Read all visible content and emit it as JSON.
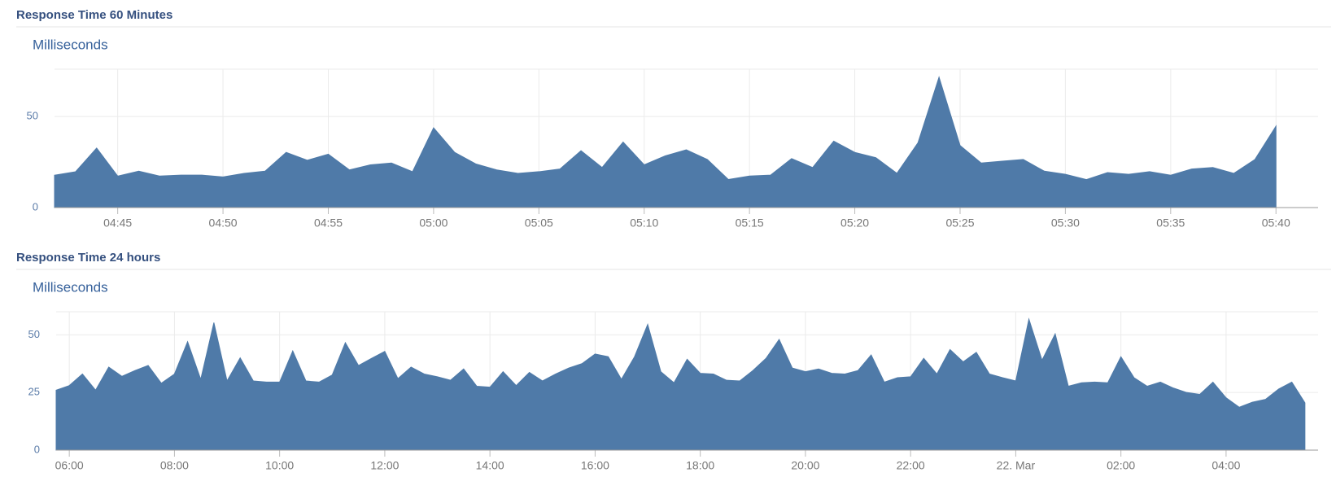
{
  "chart_data": [
    {
      "type": "area",
      "title": "Response Time 60 Minutes",
      "y_label": "Milliseconds",
      "color": "#4f7aa8",
      "categories": [
        null,
        null,
        null,
        "04:45",
        null,
        null,
        null,
        null,
        "04:50",
        null,
        null,
        null,
        null,
        "04:55",
        null,
        null,
        null,
        null,
        "05:00",
        null,
        null,
        null,
        null,
        "05:05",
        null,
        null,
        null,
        null,
        "05:10",
        null,
        null,
        null,
        null,
        "05:15",
        null,
        null,
        null,
        null,
        "05:20",
        null,
        null,
        null,
        null,
        "05:25",
        null,
        null,
        null,
        null,
        "05:30",
        null,
        null,
        null,
        null,
        "05:35",
        null,
        null,
        null,
        null,
        "05:40"
      ],
      "values": [
        17.8,
        19.7,
        32.7,
        17.3,
        20,
        17.3,
        17.8,
        17.8,
        16.8,
        18.8,
        20,
        30.3,
        26,
        29.3,
        20.7,
        23.5,
        24.5,
        19.7,
        43.8,
        30.3,
        24,
        20.7,
        18.8,
        19.7,
        21.2,
        31.2,
        22,
        36,
        23.5,
        28.4,
        31.7,
        26.4,
        15.4,
        17.3,
        17.8,
        26.9,
        22,
        36.5,
        30.3,
        27.4,
        18.8,
        35.6,
        71.6,
        34.1,
        24.5,
        25.5,
        26.4,
        20,
        18.3,
        15.4,
        19.2,
        18.3,
        19.7,
        17.8,
        21.2,
        22,
        18.8,
        26.4,
        44.7
      ],
      "ylim": [
        0,
        76
      ],
      "yticks": [
        0,
        50
      ],
      "grid": true
    },
    {
      "type": "area",
      "title": "Response Time 24 hours",
      "y_label": "Milliseconds",
      "color": "#4f7aa8",
      "categories": [
        null,
        "06:00",
        null,
        null,
        null,
        null,
        null,
        null,
        null,
        "08:00",
        null,
        null,
        null,
        null,
        null,
        null,
        null,
        "10:00",
        null,
        null,
        null,
        null,
        null,
        null,
        null,
        "12:00",
        null,
        null,
        null,
        null,
        null,
        null,
        null,
        "14:00",
        null,
        null,
        null,
        null,
        null,
        null,
        null,
        "16:00",
        null,
        null,
        null,
        null,
        null,
        null,
        null,
        "18:00",
        null,
        null,
        null,
        null,
        null,
        null,
        null,
        "20:00",
        null,
        null,
        null,
        null,
        null,
        null,
        null,
        "22:00",
        null,
        null,
        null,
        null,
        null,
        null,
        null,
        "22. Mar",
        null,
        null,
        null,
        null,
        null,
        null,
        null,
        "02:00",
        null,
        null,
        null,
        null,
        null,
        null,
        null,
        "04:00",
        null,
        null,
        null,
        null,
        null,
        null
      ],
      "values": [
        26,
        28,
        33,
        26,
        36,
        32,
        34.5,
        36.7,
        29,
        33,
        47,
        30.7,
        55.3,
        30,
        40,
        30,
        29.5,
        29.5,
        43,
        30,
        29.5,
        32.6,
        46.6,
        36.7,
        39.8,
        42.8,
        31,
        36,
        33,
        31.8,
        30.3,
        35.2,
        27.7,
        27.3,
        34,
        28,
        33.7,
        30,
        33,
        35.6,
        37.5,
        41.7,
        40.5,
        30.7,
        40.5,
        54.5,
        34,
        29.2,
        39.4,
        33.3,
        33,
        30.3,
        30,
        34.5,
        39.8,
        48,
        35.6,
        34,
        35.2,
        33.3,
        33,
        34.5,
        41.3,
        29.5,
        31.4,
        31.8,
        39.8,
        33,
        43.6,
        38.3,
        42.4,
        33,
        31.4,
        30,
        56.8,
        39,
        50.4,
        27.7,
        29.2,
        29.5,
        29.2,
        40.5,
        31.4,
        27.7,
        29.5,
        26.9,
        25,
        24.2,
        29.5,
        22.7,
        18.6,
        20.8,
        22,
        26.5,
        29.5,
        20.5
      ],
      "ylim": [
        0,
        60
      ],
      "yticks": [
        0,
        25,
        50
      ],
      "grid": true
    }
  ]
}
